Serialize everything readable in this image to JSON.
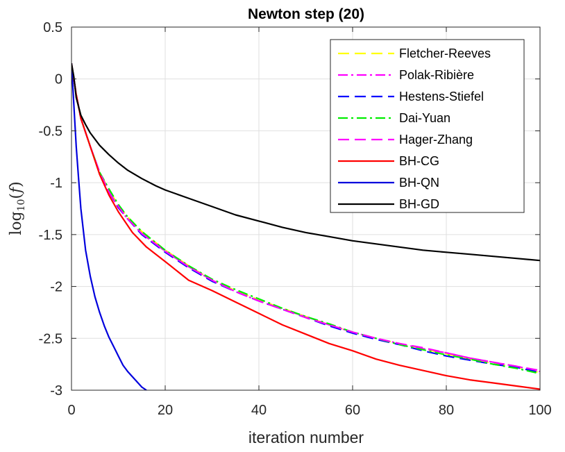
{
  "chart_data": {
    "type": "line",
    "title": "Newton step (20)",
    "xlabel": "iteration number",
    "ylabel": "log10(f)",
    "xlim": [
      0,
      100
    ],
    "ylim": [
      -3,
      0.5
    ],
    "xticks": [
      0,
      20,
      40,
      60,
      80,
      100
    ],
    "xtick_labels": [
      "0",
      "20",
      "40",
      "60",
      "80",
      "100"
    ],
    "yticks": [
      0.5,
      0,
      -0.5,
      -1,
      -1.5,
      -2,
      -2.5,
      -3
    ],
    "ytick_labels": [
      "0.5",
      "0",
      "-0.5",
      "-1",
      "-1.5",
      "-2",
      "-2.5",
      "-3"
    ],
    "grid": true,
    "legend_position": "top-right",
    "series": [
      {
        "name": "Fletcher-Reeves",
        "color": "#ffff00",
        "dash": "dashed",
        "x": [
          0,
          1,
          2,
          4,
          6,
          8,
          10,
          12,
          15,
          20,
          25,
          30,
          35,
          40,
          45,
          50,
          55,
          60,
          65,
          70,
          75,
          80,
          85,
          90,
          95,
          100
        ],
        "y": [
          0.15,
          -0.15,
          -0.38,
          -0.65,
          -0.9,
          -1.07,
          -1.22,
          -1.33,
          -1.47,
          -1.65,
          -1.8,
          -1.94,
          -2.04,
          -2.13,
          -2.21,
          -2.29,
          -2.37,
          -2.44,
          -2.5,
          -2.55,
          -2.6,
          -2.65,
          -2.7,
          -2.74,
          -2.78,
          -2.83
        ]
      },
      {
        "name": "Polak-Ribière",
        "color": "#ff00ff",
        "dash": "dashdot",
        "x": [
          0,
          1,
          2,
          4,
          6,
          8,
          10,
          12,
          15,
          20,
          25,
          30,
          35,
          40,
          45,
          50,
          55,
          60,
          65,
          70,
          75,
          80,
          85,
          90,
          95,
          100
        ],
        "y": [
          0.15,
          -0.15,
          -0.38,
          -0.65,
          -0.9,
          -1.09,
          -1.24,
          -1.35,
          -1.49,
          -1.66,
          -1.81,
          -1.94,
          -2.05,
          -2.14,
          -2.22,
          -2.29,
          -2.37,
          -2.44,
          -2.5,
          -2.55,
          -2.6,
          -2.64,
          -2.69,
          -2.73,
          -2.77,
          -2.82
        ]
      },
      {
        "name": "Hestens-Stiefel",
        "color": "#0000ff",
        "dash": "dashed",
        "x": [
          0,
          1,
          2,
          4,
          6,
          8,
          10,
          12,
          15,
          20,
          25,
          30,
          35,
          40,
          45,
          50,
          55,
          60,
          65,
          70,
          75,
          80,
          85,
          90,
          95,
          100
        ],
        "y": [
          0.15,
          -0.15,
          -0.38,
          -0.65,
          -0.9,
          -1.09,
          -1.24,
          -1.35,
          -1.5,
          -1.67,
          -1.82,
          -1.95,
          -2.05,
          -2.14,
          -2.22,
          -2.3,
          -2.38,
          -2.45,
          -2.51,
          -2.56,
          -2.62,
          -2.67,
          -2.71,
          -2.75,
          -2.78,
          -2.83
        ]
      },
      {
        "name": "Dai-Yuan",
        "color": "#00ee00",
        "dash": "dashdot",
        "x": [
          0,
          1,
          2,
          4,
          6,
          8,
          10,
          12,
          15,
          20,
          25,
          30,
          35,
          40,
          45,
          50,
          55,
          60,
          65,
          70,
          75,
          80,
          85,
          90,
          95,
          100
        ],
        "y": [
          0.15,
          -0.15,
          -0.38,
          -0.65,
          -0.9,
          -1.06,
          -1.21,
          -1.33,
          -1.47,
          -1.65,
          -1.8,
          -1.93,
          -2.03,
          -2.12,
          -2.21,
          -2.29,
          -2.36,
          -2.44,
          -2.5,
          -2.56,
          -2.61,
          -2.66,
          -2.7,
          -2.75,
          -2.79,
          -2.84
        ]
      },
      {
        "name": "Hager-Zhang",
        "color": "#ff00ff",
        "dash": "dashed",
        "x": [
          0,
          1,
          2,
          4,
          6,
          8,
          10,
          12,
          15,
          20,
          25,
          30,
          35,
          40,
          45,
          50,
          55,
          60,
          65,
          70,
          75,
          80,
          85,
          90,
          95,
          100
        ],
        "y": [
          0.15,
          -0.15,
          -0.38,
          -0.65,
          -0.9,
          -1.09,
          -1.23,
          -1.35,
          -1.49,
          -1.66,
          -1.81,
          -1.94,
          -2.05,
          -2.14,
          -2.22,
          -2.3,
          -2.37,
          -2.44,
          -2.5,
          -2.55,
          -2.59,
          -2.64,
          -2.69,
          -2.73,
          -2.77,
          -2.81
        ]
      },
      {
        "name": "BH-CG",
        "color": "#ff0000",
        "dash": "solid",
        "x": [
          0,
          1,
          2,
          4,
          6,
          8,
          10,
          13,
          16,
          20,
          25,
          30,
          35,
          40,
          45,
          50,
          55,
          60,
          65,
          70,
          75,
          80,
          85,
          90,
          95,
          100
        ],
        "y": [
          0.15,
          -0.15,
          -0.38,
          -0.65,
          -0.92,
          -1.12,
          -1.28,
          -1.48,
          -1.62,
          -1.76,
          -1.94,
          -2.04,
          -2.15,
          -2.26,
          -2.37,
          -2.46,
          -2.55,
          -2.62,
          -2.7,
          -2.76,
          -2.81,
          -2.86,
          -2.9,
          -2.93,
          -2.96,
          -2.99
        ]
      },
      {
        "name": "BH-QN",
        "color": "#0000dd",
        "dash": "solid",
        "x": [
          0,
          0.5,
          1,
          1.5,
          2,
          3,
          4,
          5,
          6,
          7,
          8,
          9,
          10,
          11,
          12,
          13,
          14,
          15,
          16
        ],
        "y": [
          0.15,
          -0.25,
          -0.65,
          -0.95,
          -1.25,
          -1.65,
          -1.9,
          -2.1,
          -2.25,
          -2.38,
          -2.49,
          -2.58,
          -2.67,
          -2.76,
          -2.82,
          -2.87,
          -2.92,
          -2.97,
          -3.0
        ]
      },
      {
        "name": "BH-GD",
        "color": "#000000",
        "dash": "solid",
        "x": [
          0,
          0.5,
          1,
          2,
          3,
          4,
          6,
          8,
          10,
          12,
          15,
          18,
          20,
          25,
          30,
          35,
          40,
          45,
          50,
          55,
          60,
          65,
          70,
          75,
          80,
          85,
          90,
          95,
          100
        ],
        "y": [
          0.15,
          0.02,
          -0.18,
          -0.35,
          -0.44,
          -0.52,
          -0.64,
          -0.73,
          -0.81,
          -0.88,
          -0.96,
          -1.03,
          -1.07,
          -1.15,
          -1.23,
          -1.31,
          -1.37,
          -1.43,
          -1.48,
          -1.52,
          -1.56,
          -1.59,
          -1.62,
          -1.65,
          -1.67,
          -1.69,
          -1.71,
          -1.73,
          -1.75
        ]
      }
    ]
  }
}
